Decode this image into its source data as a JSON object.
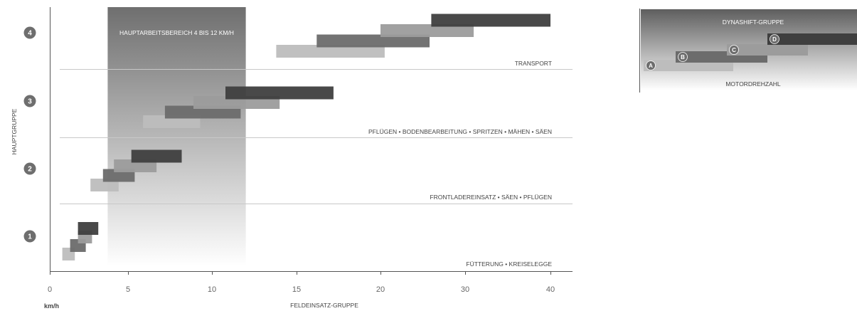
{
  "colors": {
    "dark": "#3f3f3f",
    "mid": "#6c6c6c",
    "light": "#9c9c9c",
    "pale": "#bdbdbd",
    "band_top": "#717171",
    "axis": "#555555",
    "separator": "#c8c8c8",
    "badge": "#6e6e6e"
  },
  "chart_data": [
    {
      "type": "bar",
      "title": "",
      "xlabel": "FELDEINSATZ-GRUPPE",
      "ylabel": "HAUPTGRUPPE",
      "x_unit_label": "km/h",
      "x_ticks": [
        {
          "label": "0",
          "value": 0
        },
        {
          "label": "5",
          "value": 5
        },
        {
          "label": "10",
          "value": 10
        },
        {
          "label": "15",
          "value": 15
        },
        {
          "label": "20",
          "value": 20
        },
        {
          "label": "30",
          "value": 30
        },
        {
          "label": "40",
          "value": 40
        }
      ],
      "main_groups": [
        {
          "label": "1",
          "usage": "FÜTTERUNG • KREISELEGGE"
        },
        {
          "label": "2",
          "usage": "FRONTLADEREINSATZ • SÄEN • PFLÜGEN"
        },
        {
          "label": "3",
          "usage": "PFLÜGEN • BODENBEARBEITUNG • SPRITZEN • MÄHEN • SÄEN"
        },
        {
          "label": "4",
          "usage": "TRANSPORT"
        }
      ],
      "highlight": {
        "label": "HAUPTARBEITSBEREICH 4 BIS 12 KM/H",
        "from": 3.7,
        "to": 12.0
      },
      "bars": [
        {
          "group": 1,
          "sub": "A",
          "from": 0.8,
          "to": 1.6
        },
        {
          "group": 1,
          "sub": "B",
          "from": 1.3,
          "to": 2.3
        },
        {
          "group": 1,
          "sub": "C",
          "from": 1.8,
          "to": 2.7
        },
        {
          "group": 1,
          "sub": "D",
          "from": 1.8,
          "to": 3.1
        },
        {
          "group": 2,
          "sub": "A",
          "from": 2.6,
          "to": 4.4
        },
        {
          "group": 2,
          "sub": "B",
          "from": 3.4,
          "to": 5.4
        },
        {
          "group": 2,
          "sub": "C",
          "from": 4.1,
          "to": 6.7
        },
        {
          "group": 2,
          "sub": "D",
          "from": 5.2,
          "to": 8.2
        },
        {
          "group": 3,
          "sub": "A",
          "from": 5.9,
          "to": 9.3
        },
        {
          "group": 3,
          "sub": "B",
          "from": 7.2,
          "to": 11.7
        },
        {
          "group": 3,
          "sub": "C",
          "from": 8.9,
          "to": 14.0
        },
        {
          "group": 3,
          "sub": "D",
          "from": 10.8,
          "to": 17.2
        },
        {
          "group": 4,
          "sub": "A",
          "from": 13.8,
          "to": 20.5
        },
        {
          "group": 4,
          "sub": "B",
          "from": 16.2,
          "to": 25.8
        },
        {
          "group": 4,
          "sub": "C",
          "from": 20.0,
          "to": 31.0
        },
        {
          "group": 4,
          "sub": "D",
          "from": 26.0,
          "to": 40.0
        }
      ],
      "grid": false
    },
    {
      "type": "bar",
      "title": "DYNASHIFT-GRUPPE",
      "xlabel": "MOTORDREHZAHL",
      "ylabel": "",
      "steps": [
        {
          "label": "A",
          "from": 0.0,
          "to": 0.42
        },
        {
          "label": "B",
          "from": 0.15,
          "to": 0.58
        },
        {
          "label": "C",
          "from": 0.39,
          "to": 0.77
        },
        {
          "label": "D",
          "from": 0.58,
          "to": 1.0
        }
      ]
    }
  ]
}
